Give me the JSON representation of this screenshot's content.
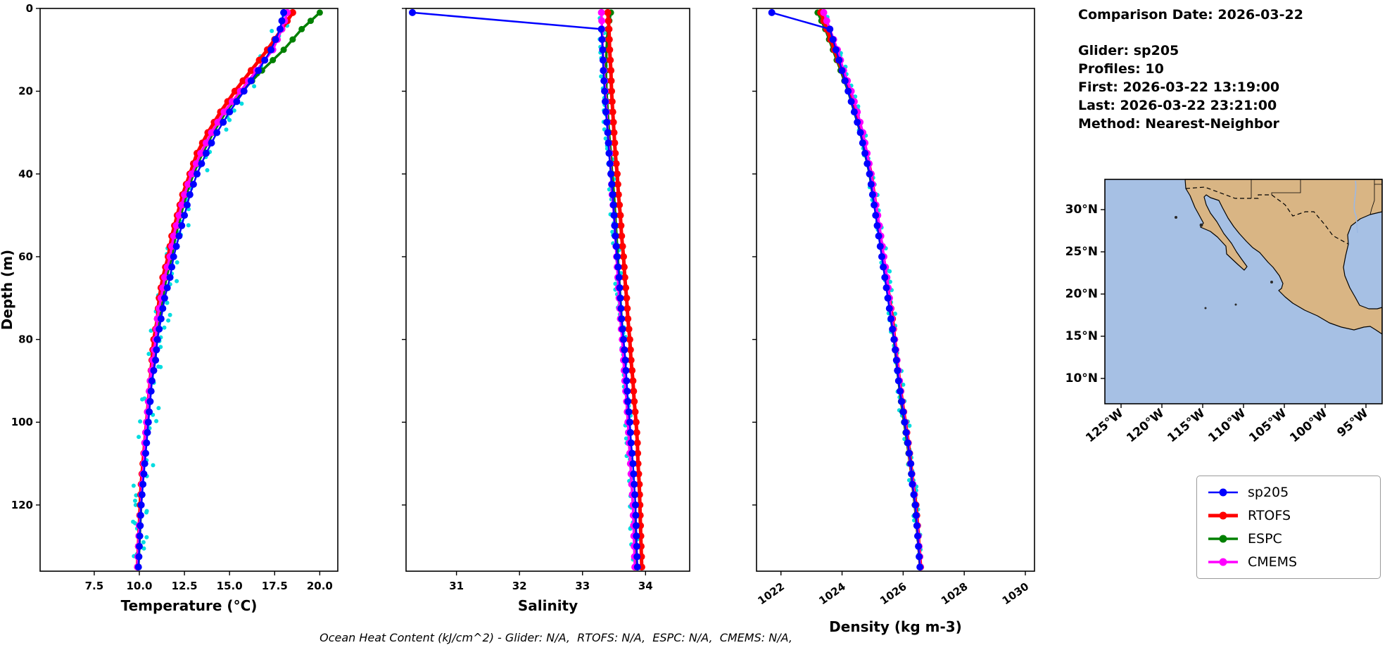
{
  "info": {
    "comparison_date": "Comparison Date: 2026-03-22",
    "glider": "Glider: sp205",
    "profiles": "Profiles: 10",
    "first": "First: 2026-03-22 13:19:00",
    "last": "Last: 2026-03-22 23:21:00",
    "method": "Method: Nearest-Neighbor"
  },
  "caption": "Ocean Heat Content (kJ/cm^2) - Glider: N/A,  RTOFS: N/A,  ESPC: N/A,  CMEMS: N/A,",
  "legend": {
    "items": [
      {
        "label": "sp205",
        "color": "#0000ff",
        "lw": 2.5
      },
      {
        "label": "RTOFS",
        "color": "#ff0000",
        "lw": 5
      },
      {
        "label": "ESPC",
        "color": "#008000",
        "lw": 3.5
      },
      {
        "label": "CMEMS",
        "color": "#ff00ff",
        "lw": 3.5
      }
    ]
  },
  "map": {
    "land_color": "#d9b584",
    "ocean_color": "#a6c0e4",
    "river_color": "#9cb8e2",
    "lat_ticks": [
      "30°N",
      "25°N",
      "20°N",
      "15°N",
      "10°N"
    ],
    "lon_ticks": [
      "125°W",
      "120°W",
      "115°W",
      "110°W",
      "105°W",
      "100°W",
      "95°W"
    ]
  },
  "chart_data": [
    {
      "id": "temperature",
      "type": "line",
      "xlabel": "Temperature (°C)",
      "ylabel": "Depth (m)",
      "xlim": [
        4.5,
        21
      ],
      "ylim": [
        0,
        136
      ],
      "yaxis_inverted": true,
      "x_tick_vals": [
        7.5,
        10.0,
        12.5,
        15.0,
        17.5,
        20.0
      ],
      "x_tick_labels": [
        "7.5",
        "10.0",
        "12.5",
        "15.0",
        "17.5",
        "20.0"
      ],
      "y_tick_vals": [
        0,
        20,
        40,
        60,
        80,
        100,
        120
      ],
      "y_tick_labels": [
        "0",
        "20",
        "40",
        "60",
        "80",
        "100",
        "120"
      ],
      "depths": [
        1,
        5,
        10,
        15,
        20,
        25,
        30,
        35,
        40,
        45,
        50,
        55,
        60,
        65,
        70,
        75,
        80,
        85,
        90,
        95,
        100,
        105,
        110,
        115,
        120,
        125,
        130,
        135
      ],
      "draw_order": [
        2,
        1,
        3,
        0
      ],
      "scatter": {
        "name": "glider-raw",
        "color": "#00dce0",
        "jitter": 0.5,
        "step": 1.3,
        "seed": 11,
        "base": 0
      },
      "series": [
        {
          "name": "sp205",
          "color": "#0000ff",
          "lw": 2.5,
          "ms": 5,
          "values": [
            18.0,
            17.8,
            17.3,
            16.6,
            15.8,
            15.0,
            14.3,
            13.7,
            13.2,
            12.8,
            12.5,
            12.2,
            11.9,
            11.7,
            11.4,
            11.2,
            11.0,
            10.9,
            10.7,
            10.6,
            10.5,
            10.4,
            10.3,
            10.2,
            10.1,
            10.05,
            10.0,
            9.95
          ]
        },
        {
          "name": "RTOFS",
          "color": "#ff0000",
          "lw": 5,
          "ms": 5,
          "values": [
            18.5,
            17.9,
            17.1,
            16.2,
            15.3,
            14.5,
            13.8,
            13.2,
            12.8,
            12.4,
            12.1,
            11.8,
            11.6,
            11.3,
            11.1,
            11.0,
            10.8,
            10.7,
            10.6,
            10.5,
            10.4,
            10.3,
            10.2,
            10.1,
            10.05,
            10.0,
            9.95,
            9.9
          ]
        },
        {
          "name": "ESPC",
          "color": "#008000",
          "lw": 3.5,
          "ms": 4.5,
          "values": [
            20.0,
            19.0,
            18.0,
            16.8,
            15.7,
            14.8,
            14.1,
            13.5,
            13.0,
            12.6,
            12.3,
            12.0,
            11.8,
            11.5,
            11.3,
            11.1,
            10.9,
            10.8,
            10.6,
            10.5,
            10.4,
            10.3,
            10.25,
            10.15,
            10.1,
            10.05,
            10.0,
            9.95
          ]
        },
        {
          "name": "CMEMS",
          "color": "#ff00ff",
          "lw": 3.5,
          "ms": 5,
          "values": [
            18.2,
            17.9,
            17.4,
            16.5,
            15.6,
            14.7,
            14.0,
            13.4,
            12.9,
            12.5,
            12.2,
            11.9,
            11.7,
            11.4,
            11.2,
            11.0,
            10.9,
            10.75,
            10.6,
            10.5,
            10.4,
            10.3,
            10.25,
            10.15,
            10.1,
            10.0,
            9.95,
            9.9
          ]
        }
      ]
    },
    {
      "id": "salinity",
      "type": "line",
      "xlabel": "Salinity",
      "ylabel": "",
      "xlim": [
        30.2,
        34.7
      ],
      "ylim": [
        0,
        136
      ],
      "yaxis_inverted": true,
      "x_tick_vals": [
        31,
        32,
        33,
        34
      ],
      "x_tick_labels": [
        "31",
        "32",
        "33",
        "34"
      ],
      "y_tick_vals": [
        0,
        20,
        40,
        60,
        80,
        100,
        120
      ],
      "y_tick_labels": [
        "0",
        "20",
        "40",
        "60",
        "80",
        "100",
        "120"
      ],
      "depths": [
        1,
        5,
        10,
        15,
        20,
        25,
        30,
        35,
        40,
        45,
        50,
        55,
        60,
        65,
        70,
        75,
        80,
        85,
        90,
        95,
        100,
        105,
        110,
        115,
        120,
        125,
        130,
        135
      ],
      "draw_order": [
        2,
        1,
        3,
        0
      ],
      "scatter": {
        "name": "glider-raw",
        "color": "#00dce0",
        "jitter": 0.055,
        "step": 1.3,
        "seed": 22,
        "base": 3
      },
      "series": [
        {
          "name": "sp205",
          "color": "#0000ff",
          "lw": 2.5,
          "ms": 5,
          "values": [
            30.3,
            33.3,
            33.32,
            33.33,
            33.35,
            33.37,
            33.4,
            33.42,
            33.45,
            33.48,
            33.5,
            33.52,
            33.55,
            33.58,
            33.6,
            33.62,
            33.65,
            33.68,
            33.7,
            33.72,
            33.75,
            33.77,
            33.8,
            33.82,
            33.84,
            33.85,
            33.86,
            33.87
          ]
        },
        {
          "name": "RTOFS",
          "color": "#ff0000",
          "lw": 5,
          "ms": 5,
          "values": [
            33.4,
            33.42,
            33.43,
            33.45,
            33.46,
            33.48,
            33.5,
            33.52,
            33.55,
            33.57,
            33.6,
            33.62,
            33.65,
            33.67,
            33.7,
            33.72,
            33.75,
            33.77,
            33.8,
            33.82,
            33.85,
            33.87,
            33.88,
            33.9,
            33.91,
            33.92,
            33.93,
            33.94
          ]
        },
        {
          "name": "ESPC",
          "color": "#008000",
          "lw": 3.5,
          "ms": 4.5,
          "values": [
            33.45,
            33.4,
            33.38,
            33.37,
            33.38,
            33.4,
            33.42,
            33.45,
            33.47,
            33.5,
            33.52,
            33.54,
            33.56,
            33.58,
            33.6,
            33.62,
            33.64,
            33.66,
            33.68,
            33.7,
            33.72,
            33.74,
            33.76,
            33.78,
            33.8,
            33.82,
            33.83,
            33.84
          ]
        },
        {
          "name": "CMEMS",
          "color": "#ff00ff",
          "lw": 3.5,
          "ms": 5,
          "values": [
            33.3,
            33.31,
            33.32,
            33.34,
            33.36,
            33.38,
            33.4,
            33.43,
            33.45,
            33.47,
            33.5,
            33.52,
            33.54,
            33.56,
            33.58,
            33.6,
            33.63,
            33.65,
            33.67,
            33.7,
            33.72,
            33.74,
            33.76,
            33.78,
            33.8,
            33.81,
            33.82,
            33.83
          ]
        }
      ]
    },
    {
      "id": "density",
      "type": "line",
      "xlabel": "Density (kg m-3)",
      "ylabel": "",
      "xlim": [
        1021.2,
        1030.3
      ],
      "ylim": [
        0,
        136
      ],
      "yaxis_inverted": true,
      "x_tick_vals": [
        1022,
        1024,
        1026,
        1028,
        1030
      ],
      "x_tick_labels": [
        "1022",
        "1024",
        "1026",
        "1028",
        "1030"
      ],
      "y_tick_vals": [
        0,
        20,
        40,
        60,
        80,
        100,
        120
      ],
      "y_tick_labels": [
        "0",
        "20",
        "40",
        "60",
        "80",
        "100",
        "120"
      ],
      "depths": [
        1,
        5,
        10,
        15,
        20,
        25,
        30,
        35,
        40,
        45,
        50,
        55,
        60,
        65,
        70,
        75,
        80,
        85,
        90,
        95,
        100,
        105,
        110,
        115,
        120,
        125,
        130,
        135
      ],
      "draw_order": [
        2,
        1,
        3,
        0
      ],
      "scatter": {
        "name": "glider-raw",
        "color": "#00dce0",
        "jitter": 0.12,
        "step": 1.3,
        "seed": 33,
        "base": 3
      },
      "series": [
        {
          "name": "sp205",
          "color": "#0000ff",
          "lw": 2.5,
          "ms": 5,
          "values": [
            1021.7,
            1023.6,
            1023.8,
            1024.0,
            1024.2,
            1024.4,
            1024.6,
            1024.75,
            1024.9,
            1025.0,
            1025.1,
            1025.2,
            1025.3,
            1025.4,
            1025.5,
            1025.6,
            1025.7,
            1025.78,
            1025.85,
            1025.95,
            1026.05,
            1026.15,
            1026.25,
            1026.3,
            1026.4,
            1026.45,
            1026.5,
            1026.55
          ]
        },
        {
          "name": "RTOFS",
          "color": "#ff0000",
          "lw": 5,
          "ms": 5,
          "values": [
            1023.3,
            1023.5,
            1023.75,
            1024.0,
            1024.25,
            1024.45,
            1024.65,
            1024.8,
            1024.95,
            1025.05,
            1025.15,
            1025.25,
            1025.35,
            1025.45,
            1025.55,
            1025.65,
            1025.72,
            1025.8,
            1025.88,
            1025.97,
            1026.07,
            1026.17,
            1026.25,
            1026.32,
            1026.42,
            1026.47,
            1026.52,
            1026.57
          ]
        },
        {
          "name": "ESPC",
          "color": "#008000",
          "lw": 3.5,
          "ms": 4.5,
          "values": [
            1023.2,
            1023.45,
            1023.7,
            1023.95,
            1024.2,
            1024.4,
            1024.6,
            1024.75,
            1024.9,
            1025.0,
            1025.12,
            1025.22,
            1025.32,
            1025.42,
            1025.52,
            1025.6,
            1025.7,
            1025.77,
            1025.85,
            1025.93,
            1026.03,
            1026.13,
            1026.22,
            1026.3,
            1026.38,
            1026.44,
            1026.5,
            1026.55
          ]
        },
        {
          "name": "CMEMS",
          "color": "#ff00ff",
          "lw": 3.5,
          "ms": 5,
          "values": [
            1023.4,
            1023.6,
            1023.85,
            1024.05,
            1024.3,
            1024.5,
            1024.68,
            1024.82,
            1024.95,
            1025.05,
            1025.17,
            1025.27,
            1025.37,
            1025.47,
            1025.55,
            1025.63,
            1025.72,
            1025.8,
            1025.88,
            1025.96,
            1026.06,
            1026.16,
            1026.24,
            1026.32,
            1026.4,
            1026.46,
            1026.52,
            1026.56
          ]
        }
      ]
    }
  ]
}
